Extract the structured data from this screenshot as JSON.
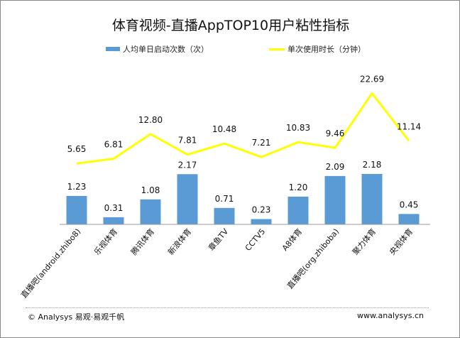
{
  "chart_data": {
    "type": "bar+line",
    "title": "体育视频-直播AppTOP10用户粘性指标",
    "categories": [
      "直播吧(android.zhibo8)",
      "乐视体育",
      "腾讯体育",
      "新浪体育",
      "章鱼TV",
      "CCTV5",
      "A8体育",
      "直播吧(org.zhiboba)",
      "聚力体育",
      "央视体育"
    ],
    "series": [
      {
        "name": "人均单日启动次数（次）",
        "type": "bar",
        "color": "#5b9bd5",
        "values": [
          1.23,
          0.31,
          1.08,
          2.17,
          0.71,
          0.23,
          1.2,
          2.09,
          2.18,
          0.45
        ],
        "labels": [
          "1.23",
          "0.31",
          "1.08",
          "2.17",
          "0.71",
          "0.23",
          "1.20",
          "2.09",
          "2.18",
          "0.45"
        ]
      },
      {
        "name": "单次使用时长（分钟）",
        "type": "line",
        "color": "#ffff00",
        "values": [
          5.65,
          6.81,
          12.8,
          7.81,
          10.48,
          7.21,
          10.83,
          9.46,
          22.69,
          11.14
        ],
        "labels": [
          "5.65",
          "6.81",
          "12.80",
          "7.81",
          "10.48",
          "7.21",
          "10.83",
          "9.46",
          "22.69",
          "11.14"
        ]
      }
    ],
    "legend": "top",
    "grid": false
  },
  "footer": {
    "left": "© Analysys 易观·易观千帆",
    "right": "www.analysys.cn"
  }
}
